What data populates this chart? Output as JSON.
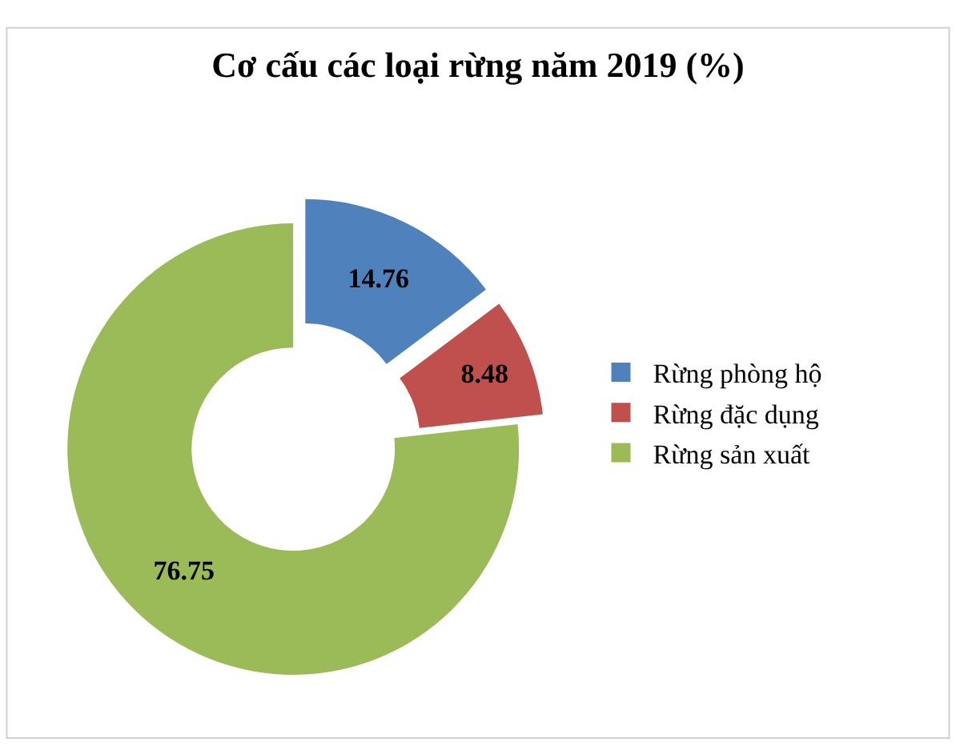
{
  "chart_data": {
    "type": "donut",
    "title": "Cơ cấu các loại rừng năm 2019 (%)",
    "categories": [
      "Rừng phòng hộ",
      "Rừng đặc dụng",
      "Rừng sản xuất"
    ],
    "values": [
      14.76,
      8.48,
      76.75
    ],
    "colors": [
      "#4f81bd",
      "#c0504d",
      "#9bbb59"
    ],
    "data_labels": true,
    "legend": "right"
  }
}
